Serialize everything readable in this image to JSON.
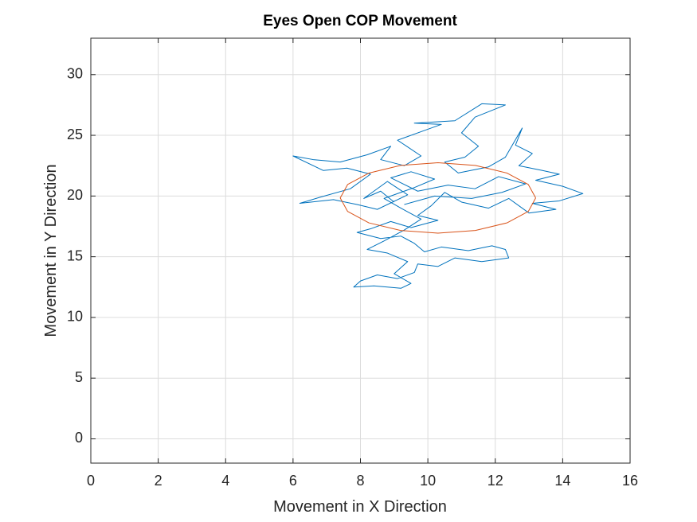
{
  "chart_data": {
    "type": "line",
    "title": "Eyes Open COP Movement",
    "x_label": "Movement in X Direction",
    "y_label": "Movement in Y Direction",
    "xlim": [
      0,
      16
    ],
    "ylim": [
      -2,
      33
    ],
    "xticks": [
      0,
      2,
      4,
      6,
      8,
      10,
      12,
      14,
      16
    ],
    "yticks": [
      0,
      5,
      10,
      15,
      20,
      25,
      30
    ],
    "grid": true,
    "series": [
      {
        "color": "#0072bd",
        "x": [
          9.0,
          8.6,
          8.1,
          8.8,
          9.4,
          8.5,
          7.9,
          7.2,
          6.2,
          6.8,
          7.7,
          8.3,
          7.6,
          6.9,
          6.0,
          6.6,
          7.4,
          8.2,
          8.9,
          8.6,
          9.3,
          9.8,
          9.1,
          9.9,
          10.4,
          9.6,
          10.8,
          11.6,
          12.3,
          11.4,
          11.0,
          11.5,
          11.1,
          10.5,
          10.9,
          11.8,
          12.3,
          12.8,
          12.6,
          13.1,
          12.7,
          13.4,
          13.9,
          13.2,
          14.0,
          14.6,
          13.9,
          13.1,
          13.8,
          13.0,
          12.4,
          11.8,
          11.0,
          10.5,
          10.1,
          9.7,
          10.3,
          9.5,
          8.9,
          8.3,
          7.9,
          8.6,
          9.2,
          9.6,
          9.9,
          10.4,
          11.2,
          11.9,
          12.3,
          12.4,
          11.6,
          10.8,
          10.3,
          9.7,
          9.6,
          9.1,
          8.5,
          8.0,
          7.8,
          8.4,
          9.2,
          9.5,
          9.0,
          9.4,
          8.8,
          8.2,
          8.7,
          9.3,
          9.8,
          9.2,
          8.7,
          9.6,
          10.2,
          9.5,
          8.9,
          9.7,
          10.6,
          11.4,
          12.1,
          12.9,
          12.2,
          11.3,
          10.2,
          9.3
        ],
        "values": [
          19.5,
          20.4,
          19.8,
          21.2,
          20.1,
          18.9,
          19.3,
          19.7,
          19.4,
          19.9,
          20.6,
          21.8,
          22.3,
          22.1,
          23.3,
          23.0,
          22.8,
          23.4,
          24.1,
          23.0,
          22.5,
          23.3,
          24.6,
          25.4,
          25.9,
          26.0,
          26.2,
          27.6,
          27.5,
          26.5,
          25.2,
          24.1,
          23.2,
          22.8,
          21.9,
          22.4,
          23.2,
          25.6,
          24.2,
          23.5,
          22.5,
          22.1,
          21.8,
          21.3,
          20.8,
          20.2,
          19.6,
          19.4,
          18.9,
          18.6,
          19.8,
          19.0,
          19.5,
          20.3,
          19.2,
          18.4,
          18.0,
          17.4,
          17.9,
          17.3,
          17.0,
          16.5,
          16.7,
          16.1,
          15.4,
          15.8,
          15.5,
          15.9,
          15.6,
          14.9,
          14.6,
          14.9,
          14.2,
          14.4,
          13.7,
          13.2,
          13.5,
          13.0,
          12.5,
          12.6,
          12.4,
          12.8,
          13.6,
          14.6,
          15.3,
          15.6,
          16.3,
          17.2,
          18.1,
          19.0,
          19.8,
          20.7,
          21.4,
          22.0,
          21.5,
          20.4,
          20.9,
          20.6,
          21.6,
          21.0,
          20.3,
          19.8,
          20.0,
          19.3
        ]
      },
      {
        "color": "#d95319",
        "x": [
          13.2,
          12.98,
          12.35,
          11.41,
          10.3,
          9.19,
          8.25,
          7.62,
          7.4,
          7.62,
          8.25,
          9.19,
          10.3,
          11.41,
          12.35,
          12.98,
          13.2
        ],
        "values": [
          19.84,
          20.95,
          21.89,
          22.52,
          22.74,
          22.52,
          21.89,
          20.95,
          19.84,
          18.73,
          17.79,
          17.16,
          16.94,
          17.16,
          17.79,
          18.73,
          19.84
        ]
      }
    ]
  }
}
